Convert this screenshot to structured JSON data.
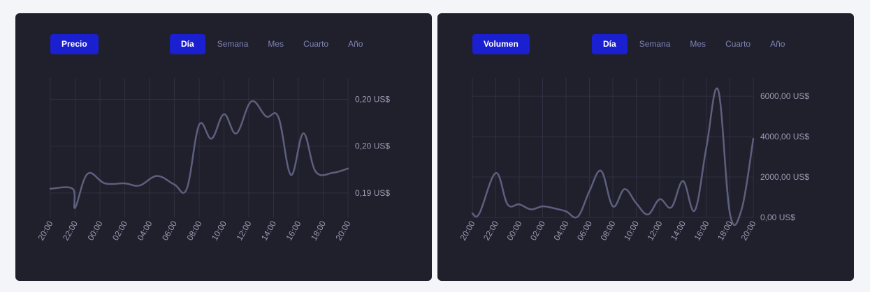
{
  "price": {
    "metric_label": "Precio",
    "tabs": [
      {
        "label": "Día",
        "active": true
      },
      {
        "label": "Semana",
        "active": false
      },
      {
        "label": "Mes",
        "active": false
      },
      {
        "label": "Cuarto",
        "active": false
      },
      {
        "label": "Año",
        "active": false
      }
    ]
  },
  "volume": {
    "metric_label": "Volumen",
    "tabs": [
      {
        "label": "Día",
        "active": true
      },
      {
        "label": "Semana",
        "active": false
      },
      {
        "label": "Mes",
        "active": false
      },
      {
        "label": "Cuarto",
        "active": false
      },
      {
        "label": "Año",
        "active": false
      }
    ]
  },
  "colors": {
    "page_background": "#f4f5f9",
    "card_background": "#1f202c",
    "accent": "#1a1fcf",
    "line": "#5d5f7d",
    "inactive_tab_text": "#7f83b3",
    "tick_text": "#9a9cb3"
  },
  "chart_data": [
    {
      "type": "line",
      "title": "",
      "x": [
        "20:00",
        "22:00",
        "00:00",
        "02:00",
        "04:00",
        "06:00",
        "08:00",
        "10:00",
        "12:00",
        "14:00",
        "16:00",
        "18:00",
        "20:00"
      ],
      "y_ticks": [
        {
          "value": 0.1931,
          "label": "0,19 US$"
        },
        {
          "value": 0.1975,
          "label": "0,20 US$"
        },
        {
          "value": 0.2019,
          "label": "0,20 US$"
        }
      ],
      "ylim": [
        0.1908,
        0.2039
      ],
      "grid": true,
      "y_axis_position": "right",
      "series": [
        {
          "values": [
            [
              0.0,
              0.1935
            ],
            [
              0.9,
              0.1935
            ],
            [
              1.0,
              0.1917
            ],
            [
              1.5,
              0.1949
            ],
            [
              2.2,
              0.194
            ],
            [
              3.0,
              0.194
            ],
            [
              3.6,
              0.1938
            ],
            [
              4.3,
              0.1947
            ],
            [
              5.0,
              0.1939
            ],
            [
              5.5,
              0.1935
            ],
            [
              6.0,
              0.1995
            ],
            [
              6.5,
              0.1982
            ],
            [
              7.0,
              0.2005
            ],
            [
              7.5,
              0.1987
            ],
            [
              8.1,
              0.2017
            ],
            [
              8.7,
              0.2003
            ],
            [
              9.2,
              0.2002
            ],
            [
              9.7,
              0.1948
            ],
            [
              10.2,
              0.1987
            ],
            [
              10.7,
              0.1951
            ],
            [
              11.4,
              0.195
            ],
            [
              12.0,
              0.1954
            ]
          ]
        }
      ]
    },
    {
      "type": "line",
      "title": "",
      "x": [
        "20:00",
        "22:00",
        "00:00",
        "02:00",
        "04:00",
        "06:00",
        "08:00",
        "10:00",
        "12:00",
        "14:00",
        "16:00",
        "18:00",
        "20:00"
      ],
      "y_ticks": [
        {
          "value": 0,
          "label": "0,00 US$"
        },
        {
          "value": 2000,
          "label": "2000,00 US$"
        },
        {
          "value": 4000,
          "label": "4000,00 US$"
        },
        {
          "value": 6000,
          "label": "6000,00 US$"
        }
      ],
      "ylim": [
        0,
        6900
      ],
      "grid": true,
      "y_axis_position": "right",
      "series": [
        {
          "values": [
            [
              0.0,
              200
            ],
            [
              0.3,
              200
            ],
            [
              1.0,
              2200
            ],
            [
              1.5,
              650
            ],
            [
              2.0,
              650
            ],
            [
              2.5,
              400
            ],
            [
              3.0,
              550
            ],
            [
              3.5,
              450
            ],
            [
              4.0,
              300
            ],
            [
              4.5,
              40
            ],
            [
              5.0,
              1300
            ],
            [
              5.5,
              2300
            ],
            [
              6.0,
              550
            ],
            [
              6.5,
              1400
            ],
            [
              7.0,
              700
            ],
            [
              7.5,
              150
            ],
            [
              8.0,
              900
            ],
            [
              8.5,
              500
            ],
            [
              9.0,
              1800
            ],
            [
              9.5,
              350
            ],
            [
              10.0,
              3500
            ],
            [
              10.5,
              6300
            ],
            [
              11.0,
              200
            ],
            [
              11.5,
              400
            ],
            [
              12.0,
              3900
            ]
          ]
        }
      ]
    }
  ]
}
